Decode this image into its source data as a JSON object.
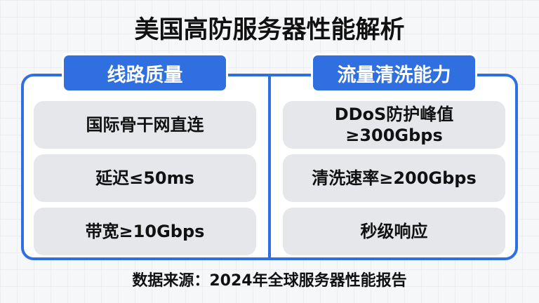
{
  "title": "美国高防服务器性能解析",
  "columns": [
    {
      "header": "线路质量",
      "items": [
        "国际骨干网直连",
        "延迟≤50ms",
        "带宽≥10Gbps"
      ]
    },
    {
      "header": "流量清洗能力",
      "items": [
        "DDoS防护峰值\n≥300Gbps",
        "清洗速率≥200Gbps",
        "秒级响应"
      ]
    }
  ],
  "footer": "数据来源：2024年全球服务器性能报告",
  "colors": {
    "accent": "#2f6fe0",
    "card": "#e5e7eb"
  }
}
